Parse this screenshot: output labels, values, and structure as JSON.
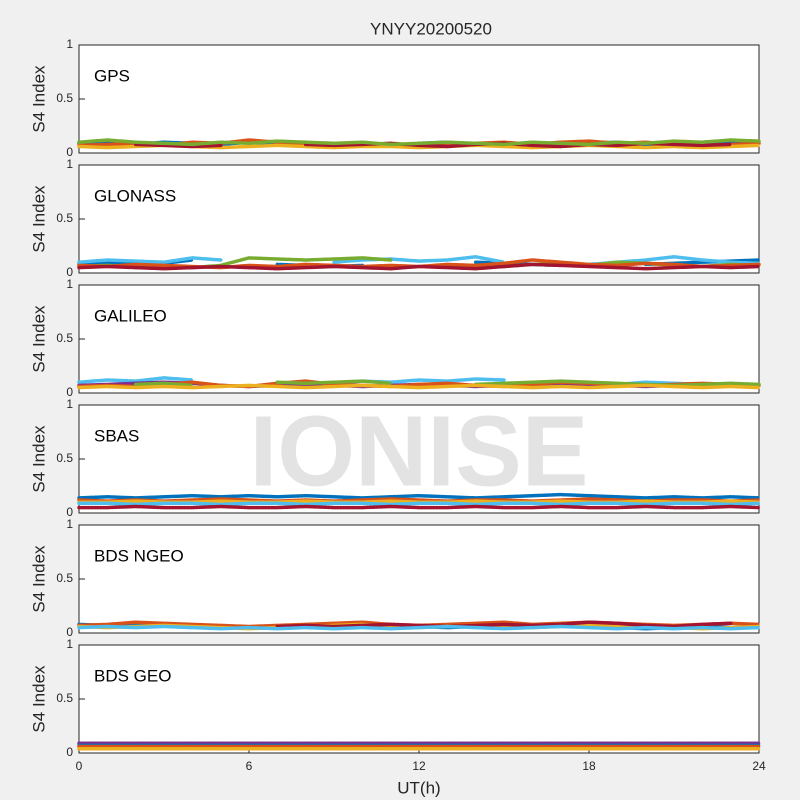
{
  "title": "YNYY20200520",
  "watermark": "IONISE",
  "chart_data": [
    {
      "type": "line",
      "label": "GPS",
      "ylabel": "S4 Index",
      "xlim": [
        0,
        24
      ],
      "ylim": [
        0,
        1
      ],
      "yticks": [
        0,
        0.5,
        1
      ],
      "x": [
        0,
        1,
        2,
        3,
        4,
        5,
        6,
        7,
        8,
        9,
        10,
        11,
        12,
        13,
        14,
        15,
        16,
        17,
        18,
        19,
        20,
        21,
        22,
        23,
        24
      ],
      "series": [
        {
          "color": "#0072BD",
          "values": [
            0.09,
            0.1,
            0.08,
            0.1,
            0.09,
            0.08,
            0.1,
            0.08,
            0.07,
            0.08,
            null,
            null,
            0.09,
            0.1,
            0.08,
            null,
            0.07,
            0.08,
            0.09,
            0.1,
            0.08,
            0.09,
            0.1,
            0.11,
            0.1
          ]
        },
        {
          "color": "#D95319",
          "values": [
            0.07,
            0.08,
            0.09,
            0.07,
            0.1,
            0.09,
            0.12,
            0.1,
            0.09,
            0.08,
            0.09,
            0.07,
            0.08,
            0.07,
            0.09,
            0.1,
            0.08,
            0.1,
            0.11,
            0.09,
            0.1,
            0.08,
            0.07,
            0.08,
            0.09
          ]
        },
        {
          "color": "#EDB120",
          "values": [
            0.06,
            0.05,
            0.06,
            0.07,
            0.06,
            0.05,
            0.06,
            0.07,
            0.06,
            0.05,
            0.06,
            0.06,
            0.05,
            0.06,
            0.07,
            0.06,
            0.05,
            0.06,
            0.07,
            0.06,
            0.05,
            0.06,
            0.05,
            0.06,
            0.07
          ]
        },
        {
          "color": "#A2142F",
          "values": [
            null,
            null,
            0.08,
            0.07,
            0.06,
            0.07,
            null,
            null,
            0.08,
            0.07,
            0.08,
            0.09,
            0.07,
            0.06,
            0.08,
            0.09,
            0.07,
            0.06,
            0.08,
            0.07,
            0.09,
            0.08,
            0.07,
            0.08,
            null
          ]
        },
        {
          "color": "#77AC30",
          "values": [
            0.1,
            0.12,
            0.1,
            0.09,
            0.08,
            0.1,
            0.09,
            0.11,
            0.1,
            0.09,
            0.1,
            0.08,
            0.09,
            0.1,
            0.09,
            0.08,
            0.1,
            0.09,
            0.08,
            0.1,
            0.09,
            0.11,
            0.1,
            0.12,
            0.11
          ]
        }
      ]
    },
    {
      "type": "line",
      "label": "GLONASS",
      "ylabel": "S4 Index",
      "xlim": [
        0,
        24
      ],
      "ylim": [
        0,
        1
      ],
      "yticks": [
        0,
        0.5,
        1
      ],
      "x": [
        0,
        1,
        2,
        3,
        4,
        5,
        6,
        7,
        8,
        9,
        10,
        11,
        12,
        13,
        14,
        15,
        16,
        17,
        18,
        19,
        20,
        21,
        22,
        23,
        24
      ],
      "series": [
        {
          "color": "#0072BD",
          "values": [
            0.08,
            0.09,
            0.1,
            0.09,
            0.12,
            null,
            null,
            0.08,
            0.07,
            0.06,
            0.07,
            null,
            null,
            null,
            0.1,
            0.09,
            0.08,
            0.07,
            null,
            null,
            0.08,
            0.09,
            0.1,
            0.11,
            0.12
          ]
        },
        {
          "color": "#4DBEEE",
          "values": [
            0.1,
            0.12,
            0.11,
            0.1,
            0.14,
            0.12,
            null,
            null,
            null,
            0.1,
            0.12,
            0.13,
            0.11,
            0.12,
            0.15,
            0.1,
            null,
            null,
            0.08,
            0.1,
            0.12,
            0.15,
            0.12,
            0.1,
            0.09
          ]
        },
        {
          "color": "#77AC30",
          "values": [
            0.06,
            0.07,
            0.05,
            0.06,
            0.05,
            0.07,
            0.14,
            0.13,
            0.12,
            0.13,
            0.14,
            0.12,
            null,
            null,
            0.07,
            0.06,
            0.08,
            0.09,
            0.07,
            0.1,
            0.09,
            0.07,
            0.06,
            0.08,
            0.07
          ]
        },
        {
          "color": "#D95319",
          "values": [
            0.07,
            0.06,
            0.08,
            0.07,
            0.06,
            0.05,
            0.07,
            0.06,
            0.08,
            0.07,
            0.06,
            0.07,
            0.06,
            0.08,
            0.07,
            0.09,
            0.12,
            0.1,
            0.08,
            0.07,
            0.09,
            0.08,
            0.06,
            0.07,
            0.08
          ]
        },
        {
          "color": "#A2142F",
          "values": [
            0.05,
            0.06,
            0.05,
            0.04,
            0.05,
            0.06,
            0.05,
            0.04,
            0.05,
            0.06,
            0.05,
            0.04,
            0.06,
            0.05,
            0.04,
            0.06,
            0.08,
            0.07,
            0.06,
            0.05,
            0.04,
            0.05,
            0.06,
            0.05,
            0.06
          ]
        }
      ]
    },
    {
      "type": "line",
      "label": "GALILEO",
      "ylabel": "S4 Index",
      "xlim": [
        0,
        24
      ],
      "ylim": [
        0,
        1
      ],
      "yticks": [
        0,
        0.5,
        1
      ],
      "x": [
        0,
        1,
        2,
        3,
        4,
        5,
        6,
        7,
        8,
        9,
        10,
        11,
        12,
        13,
        14,
        15,
        16,
        17,
        18,
        19,
        20,
        21,
        22,
        23,
        24
      ],
      "series": [
        {
          "color": "#4DBEEE",
          "values": [
            0.1,
            0.12,
            0.11,
            0.14,
            0.12,
            null,
            null,
            null,
            0.1,
            0.09,
            0.11,
            0.1,
            0.12,
            0.11,
            0.13,
            0.12,
            null,
            null,
            0.09,
            0.08,
            0.1,
            0.09,
            0.08,
            0.07,
            0.08
          ]
        },
        {
          "color": "#7E2F8E",
          "values": [
            0.07,
            0.08,
            0.09,
            0.1,
            0.09,
            0.07,
            0.06,
            0.07,
            0.08,
            0.07,
            0.06,
            0.07,
            0.08,
            0.07,
            0.06,
            0.07,
            0.08,
            0.09,
            0.08,
            0.07,
            0.06,
            0.07,
            0.08,
            0.07,
            0.06
          ]
        },
        {
          "color": "#D95319",
          "values": [
            0.06,
            0.07,
            0.06,
            0.08,
            0.1,
            0.07,
            0.06,
            0.09,
            0.11,
            0.08,
            0.07,
            0.06,
            0.08,
            0.09,
            0.07,
            0.06,
            0.08,
            0.1,
            0.09,
            0.08,
            0.07,
            0.08,
            0.09,
            0.08,
            0.07
          ]
        },
        {
          "color": "#77AC30",
          "values": [
            null,
            null,
            0.08,
            0.09,
            0.07,
            null,
            null,
            0.1,
            0.09,
            0.1,
            0.11,
            0.09,
            null,
            null,
            0.08,
            0.09,
            0.1,
            0.11,
            0.1,
            0.09,
            0.08,
            0.07,
            0.08,
            0.09,
            0.08
          ]
        },
        {
          "color": "#EDB120",
          "values": [
            0.05,
            0.06,
            0.05,
            0.06,
            0.05,
            0.06,
            0.07,
            0.06,
            0.05,
            0.06,
            0.07,
            0.06,
            0.05,
            0.06,
            0.07,
            0.06,
            0.05,
            0.06,
            0.05,
            0.06,
            0.07,
            0.06,
            0.05,
            0.06,
            0.05
          ]
        }
      ]
    },
    {
      "type": "line",
      "label": "SBAS",
      "ylabel": "S4 Index",
      "xlim": [
        0,
        24
      ],
      "ylim": [
        0,
        1
      ],
      "yticks": [
        0,
        0.5,
        1
      ],
      "x": [
        0,
        1,
        2,
        3,
        4,
        5,
        6,
        7,
        8,
        9,
        10,
        11,
        12,
        13,
        14,
        15,
        16,
        17,
        18,
        19,
        20,
        21,
        22,
        23,
        24
      ],
      "series": [
        {
          "color": "#0072BD",
          "values": [
            0.14,
            0.15,
            0.14,
            0.15,
            0.16,
            0.15,
            0.16,
            0.15,
            0.16,
            0.15,
            0.14,
            0.15,
            0.16,
            0.15,
            0.14,
            0.15,
            0.16,
            0.17,
            0.16,
            0.15,
            0.14,
            0.15,
            0.14,
            0.15,
            0.14
          ]
        },
        {
          "color": "#D95319",
          "values": [
            0.12,
            0.11,
            0.12,
            0.11,
            0.12,
            0.13,
            0.12,
            0.11,
            0.12,
            0.11,
            0.12,
            0.13,
            0.12,
            0.11,
            0.12,
            0.12,
            0.11,
            0.12,
            0.13,
            0.12,
            0.11,
            0.12,
            0.12,
            0.11,
            0.12
          ]
        },
        {
          "color": "#EDB120",
          "values": [
            0.1,
            0.1,
            0.11,
            0.1,
            0.1,
            0.11,
            0.1,
            0.1,
            0.11,
            0.1,
            0.1,
            0.11,
            0.1,
            0.1,
            0.11,
            0.1,
            0.1,
            0.11,
            0.1,
            0.1,
            0.11,
            0.1,
            0.1,
            0.11,
            0.1
          ]
        },
        {
          "color": "#4DBEEE",
          "values": [
            0.09,
            0.09,
            0.08,
            0.09,
            0.09,
            0.08,
            0.09,
            0.09,
            0.08,
            0.09,
            0.09,
            0.08,
            0.09,
            0.09,
            0.08,
            0.09,
            0.09,
            0.08,
            0.09,
            0.09,
            0.08,
            0.09,
            0.09,
            0.08,
            0.09
          ]
        },
        {
          "color": "#A2142F",
          "values": [
            0.05,
            0.05,
            0.06,
            0.05,
            0.05,
            0.06,
            0.05,
            0.05,
            0.06,
            0.05,
            0.05,
            0.06,
            0.05,
            0.05,
            0.06,
            0.05,
            0.05,
            0.06,
            0.05,
            0.05,
            0.06,
            0.05,
            0.05,
            0.06,
            0.05
          ]
        }
      ]
    },
    {
      "type": "line",
      "label": "BDS NGEO",
      "ylabel": "S4 Index",
      "xlim": [
        0,
        24
      ],
      "ylim": [
        0,
        1
      ],
      "yticks": [
        0,
        0.5,
        1
      ],
      "x": [
        0,
        1,
        2,
        3,
        4,
        5,
        6,
        7,
        8,
        9,
        10,
        11,
        12,
        13,
        14,
        15,
        16,
        17,
        18,
        19,
        20,
        21,
        22,
        23,
        24
      ],
      "series": [
        {
          "color": "#0072BD",
          "values": [
            0.08,
            0.07,
            0.09,
            0.08,
            0.07,
            0.06,
            0.05,
            0.05,
            0.06,
            0.07,
            0.08,
            0.07,
            0.06,
            0.05,
            0.06,
            0.05,
            0.06,
            0.07,
            0.06,
            0.05,
            0.04,
            0.05,
            0.06,
            0.05,
            0.06
          ]
        },
        {
          "color": "#D95319",
          "values": [
            0.07,
            0.08,
            0.1,
            0.09,
            0.08,
            0.07,
            0.06,
            0.07,
            0.08,
            0.09,
            0.1,
            0.08,
            0.07,
            0.08,
            0.09,
            0.1,
            0.08,
            0.09,
            0.1,
            0.09,
            0.08,
            0.07,
            0.08,
            0.09,
            0.08
          ]
        },
        {
          "color": "#EDB120",
          "values": [
            0.06,
            0.05,
            0.06,
            0.07,
            0.06,
            0.05,
            0.04,
            0.05,
            0.06,
            0.07,
            0.08,
            0.06,
            0.05,
            0.06,
            0.07,
            0.06,
            0.05,
            0.06,
            0.08,
            0.07,
            0.06,
            0.05,
            0.04,
            0.05,
            0.06
          ]
        },
        {
          "color": "#A2142F",
          "values": [
            null,
            null,
            null,
            null,
            null,
            null,
            null,
            0.06,
            0.07,
            0.06,
            0.07,
            0.08,
            0.07,
            0.06,
            0.07,
            0.08,
            0.07,
            0.08,
            0.1,
            0.09,
            0.07,
            0.06,
            0.08,
            0.09,
            null
          ]
        },
        {
          "color": "#4DBEEE",
          "values": [
            0.05,
            0.06,
            0.05,
            0.06,
            0.05,
            0.04,
            0.05,
            0.04,
            0.05,
            0.04,
            0.05,
            0.04,
            0.05,
            0.06,
            0.05,
            0.04,
            0.05,
            0.06,
            0.05,
            0.04,
            0.05,
            0.04,
            0.05,
            0.04,
            0.05
          ]
        }
      ]
    },
    {
      "type": "line",
      "label": "BDS GEO",
      "ylabel": "S4 Index",
      "xlabel": "UT(h)",
      "xlim": [
        0,
        24
      ],
      "xticks": [
        0,
        6,
        12,
        18,
        24
      ],
      "ylim": [
        0,
        1
      ],
      "yticks": [
        0,
        0.5,
        1
      ],
      "x": [
        0,
        1,
        2,
        3,
        4,
        5,
        6,
        7,
        8,
        9,
        10,
        11,
        12,
        13,
        14,
        15,
        16,
        17,
        18,
        19,
        20,
        21,
        22,
        23,
        24
      ],
      "series": [
        {
          "color": "#7E2F8E",
          "values": [
            0.09,
            0.09,
            0.09,
            0.09,
            0.09,
            0.09,
            0.09,
            0.09,
            0.09,
            0.09,
            0.09,
            0.09,
            0.09,
            0.09,
            0.09,
            0.09,
            0.09,
            0.09,
            0.09,
            0.09,
            0.09,
            0.09,
            0.09,
            0.09,
            0.09
          ]
        },
        {
          "color": "#0072BD",
          "values": [
            0.07,
            0.07,
            0.07,
            0.07,
            0.07,
            0.07,
            0.07,
            0.07,
            0.07,
            0.07,
            0.07,
            0.07,
            0.07,
            0.07,
            0.07,
            0.07,
            0.07,
            0.07,
            0.07,
            0.07,
            0.07,
            0.07,
            0.07,
            0.07,
            0.07
          ]
        },
        {
          "color": "#D95319",
          "values": [
            0.06,
            0.06,
            0.06,
            0.06,
            0.06,
            0.06,
            0.06,
            0.06,
            0.06,
            0.06,
            0.06,
            0.06,
            0.06,
            0.06,
            0.06,
            0.06,
            0.06,
            0.06,
            0.06,
            0.06,
            0.06,
            0.06,
            0.06,
            0.06,
            0.06
          ]
        },
        {
          "color": "#EDB120",
          "values": [
            0.04,
            0.04,
            0.04,
            0.04,
            0.04,
            0.04,
            0.04,
            0.04,
            0.04,
            0.04,
            0.04,
            0.04,
            0.04,
            0.04,
            0.04,
            0.04,
            0.04,
            0.04,
            0.04,
            0.04,
            0.04,
            0.04,
            0.04,
            0.04,
            0.04
          ]
        }
      ]
    }
  ]
}
